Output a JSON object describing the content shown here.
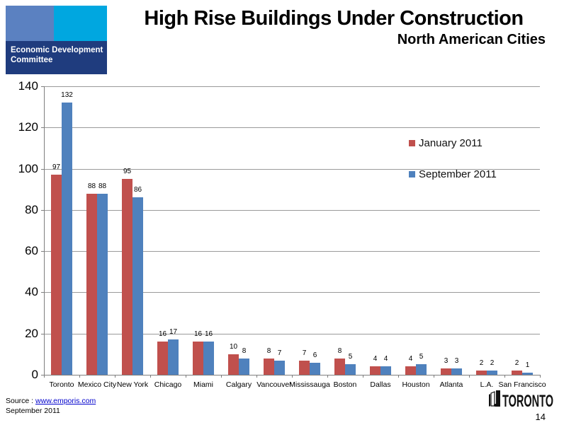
{
  "logo": {
    "line1": "Economic Development",
    "line2": "Committee",
    "square1_color": "#5b81c1",
    "square2_color": "#00a7e0",
    "band_color": "#1f3c7e"
  },
  "header": {
    "title": "High Rise Buildings Under Construction",
    "subtitle": "North American Cities"
  },
  "chart_data": {
    "type": "bar",
    "categories": [
      "Toronto",
      "Mexico City",
      "New York",
      "Chicago",
      "Miami",
      "Calgary",
      "Vancouver",
      "Mississauga",
      "Boston",
      "Dallas",
      "Houston",
      "Atlanta",
      "L.A.",
      "San Francisco"
    ],
    "series": [
      {
        "name": "January 2011",
        "color": "#C0504D",
        "values": [
          97,
          88,
          95,
          16,
          16,
          10,
          8,
          7,
          8,
          4,
          4,
          3,
          2,
          2
        ]
      },
      {
        "name": "September 2011",
        "color": "#4F81BD",
        "values": [
          132,
          88,
          86,
          17,
          16,
          8,
          7,
          6,
          5,
          4,
          5,
          3,
          2,
          1
        ]
      }
    ],
    "title": "High Rise Buildings Under Construction",
    "xlabel": "",
    "ylabel": "",
    "ylim": [
      0,
      140
    ],
    "yticks": [
      0,
      20,
      40,
      60,
      80,
      100,
      120,
      140
    ],
    "grid": true,
    "data_labels": true,
    "legend_position": "inside-top-right"
  },
  "footer": {
    "source_prefix": "Source : ",
    "source_link": "www.emporis.com",
    "date": "September 2011",
    "toronto_wordmark": "TORONTO",
    "page_number": "14"
  }
}
